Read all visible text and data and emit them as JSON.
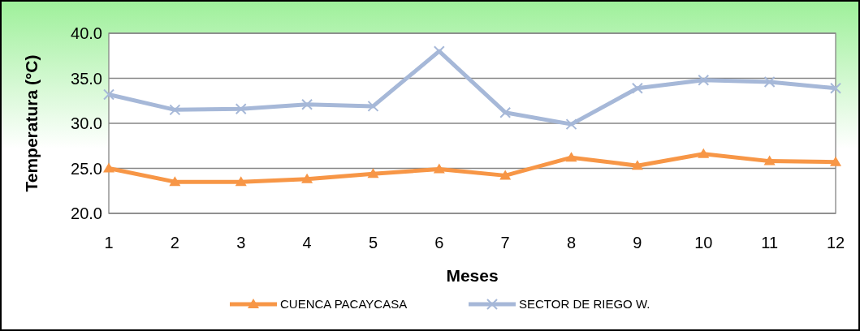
{
  "chart_data": {
    "type": "line",
    "xlabel": "Meses",
    "ylabel": "Temperatura (°C)",
    "x": [
      1,
      2,
      3,
      4,
      5,
      6,
      7,
      8,
      9,
      10,
      11,
      12
    ],
    "xlim": [
      1,
      12
    ],
    "xticks": [
      1,
      2,
      3,
      4,
      5,
      6,
      7,
      8,
      9,
      10,
      11,
      12
    ],
    "ylim": [
      20,
      40
    ],
    "yticks": [
      {
        "value": 20,
        "label": "20.0"
      },
      {
        "value": 25,
        "label": "25.0"
      },
      {
        "value": 30,
        "label": "30.0"
      },
      {
        "value": 35,
        "label": "35.0"
      },
      {
        "value": 40,
        "label": "40.0"
      }
    ],
    "grid": "y",
    "legend": "bottom",
    "line_style": "solid",
    "series": [
      {
        "name": "CUENCA PACAYCASA",
        "color": "#f79646",
        "marker": "triangle",
        "values": [
          25.0,
          23.5,
          23.5,
          23.8,
          24.4,
          24.9,
          24.2,
          26.2,
          25.3,
          26.6,
          25.8,
          25.7
        ]
      },
      {
        "name": "SECTOR DE RIEGO W.",
        "color": "#a6b8d8",
        "marker": "cross",
        "values": [
          33.2,
          31.5,
          31.6,
          32.1,
          31.9,
          38.0,
          31.2,
          29.9,
          33.9,
          34.8,
          34.6,
          33.9
        ]
      }
    ]
  }
}
